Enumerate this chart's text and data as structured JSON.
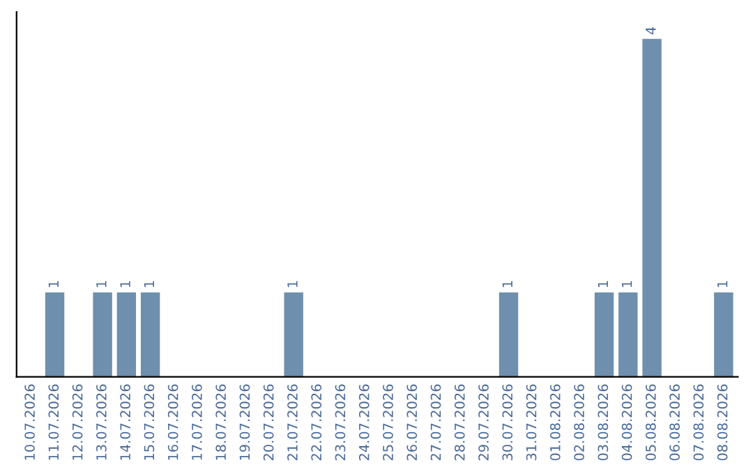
{
  "chart_data": {
    "type": "bar",
    "categories": [
      "10.07.2026",
      "11.07.2026",
      "12.07.2026",
      "13.07.2026",
      "14.07.2026",
      "15.07.2026",
      "16.07.2026",
      "17.07.2026",
      "18.07.2026",
      "19.07.2026",
      "20.07.2026",
      "21.07.2026",
      "22.07.2026",
      "23.07.2026",
      "24.07.2026",
      "25.07.2026",
      "26.07.2026",
      "27.07.2026",
      "28.07.2026",
      "29.07.2026",
      "30.07.2026",
      "31.07.2026",
      "01.08.2026",
      "02.08.2026",
      "03.08.2026",
      "04.08.2026",
      "05.08.2026",
      "06.08.2026",
      "07.08.2026",
      "08.08.2026"
    ],
    "values": [
      0,
      1,
      0,
      1,
      1,
      1,
      0,
      0,
      0,
      0,
      0,
      1,
      0,
      0,
      0,
      0,
      0,
      0,
      0,
      0,
      1,
      0,
      0,
      0,
      1,
      1,
      4,
      0,
      0,
      1
    ],
    "value_labels": [
      null,
      "1",
      null,
      "1",
      "1",
      "1",
      null,
      null,
      null,
      null,
      null,
      "1",
      null,
      null,
      null,
      null,
      null,
      null,
      null,
      null,
      "1",
      null,
      null,
      null,
      "1",
      "1",
      "4",
      null,
      null,
      "1"
    ],
    "color": "#6e8fad",
    "tick_labels": "x",
    "grid": false,
    "legend": false
  }
}
